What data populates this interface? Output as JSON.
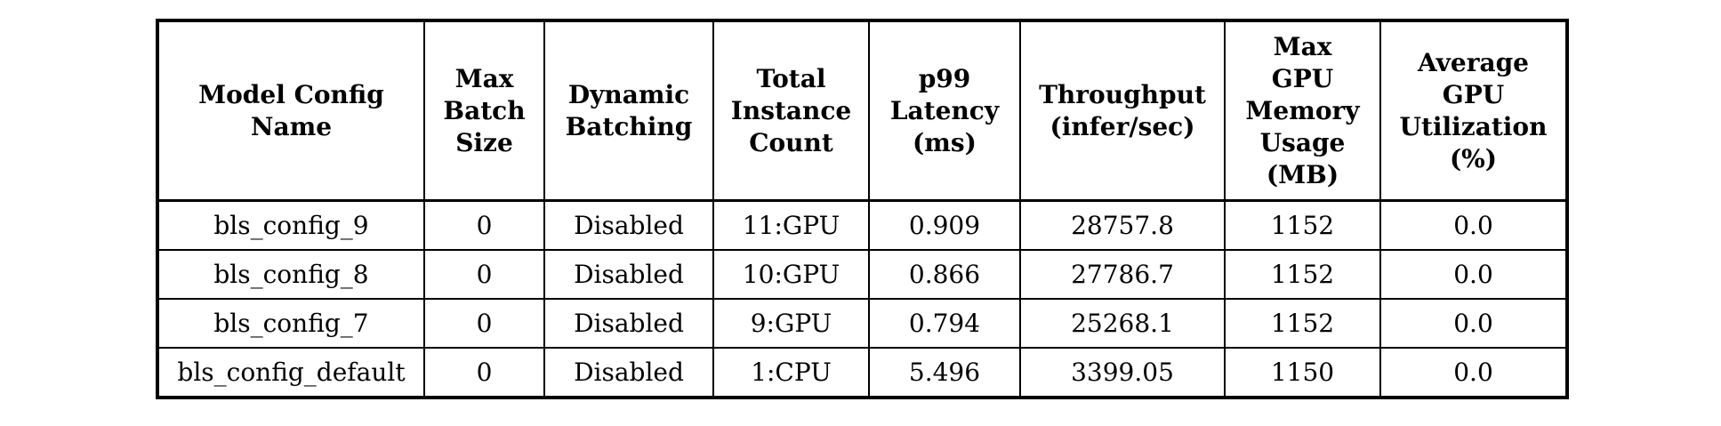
{
  "table": {
    "headers": [
      "Model Config\nName",
      "Max\nBatch\nSize",
      "Dynamic\nBatching",
      "Total\nInstance\nCount",
      "p99\nLatency\n(ms)",
      "Throughput\n(infer/sec)",
      "Max\nGPU\nMemory\nUsage\n(MB)",
      "Average\nGPU\nUtilization\n(%)"
    ],
    "rows": [
      [
        "bls_config_9",
        "0",
        "Disabled",
        "11:GPU",
        "0.909",
        "28757.8",
        "1152",
        "0.0"
      ],
      [
        "bls_config_8",
        "0",
        "Disabled",
        "10:GPU",
        "0.866",
        "27786.7",
        "1152",
        "0.0"
      ],
      [
        "bls_config_7",
        "0",
        "Disabled",
        "9:GPU",
        "0.794",
        "25268.1",
        "1152",
        "0.0"
      ],
      [
        "bls_config_default",
        "0",
        "Disabled",
        "1:CPU",
        "5.496",
        "3399.05",
        "1150",
        "0.0"
      ]
    ]
  },
  "colors": {
    "text": "#000000",
    "border": "#000000",
    "background": "#ffffff"
  }
}
